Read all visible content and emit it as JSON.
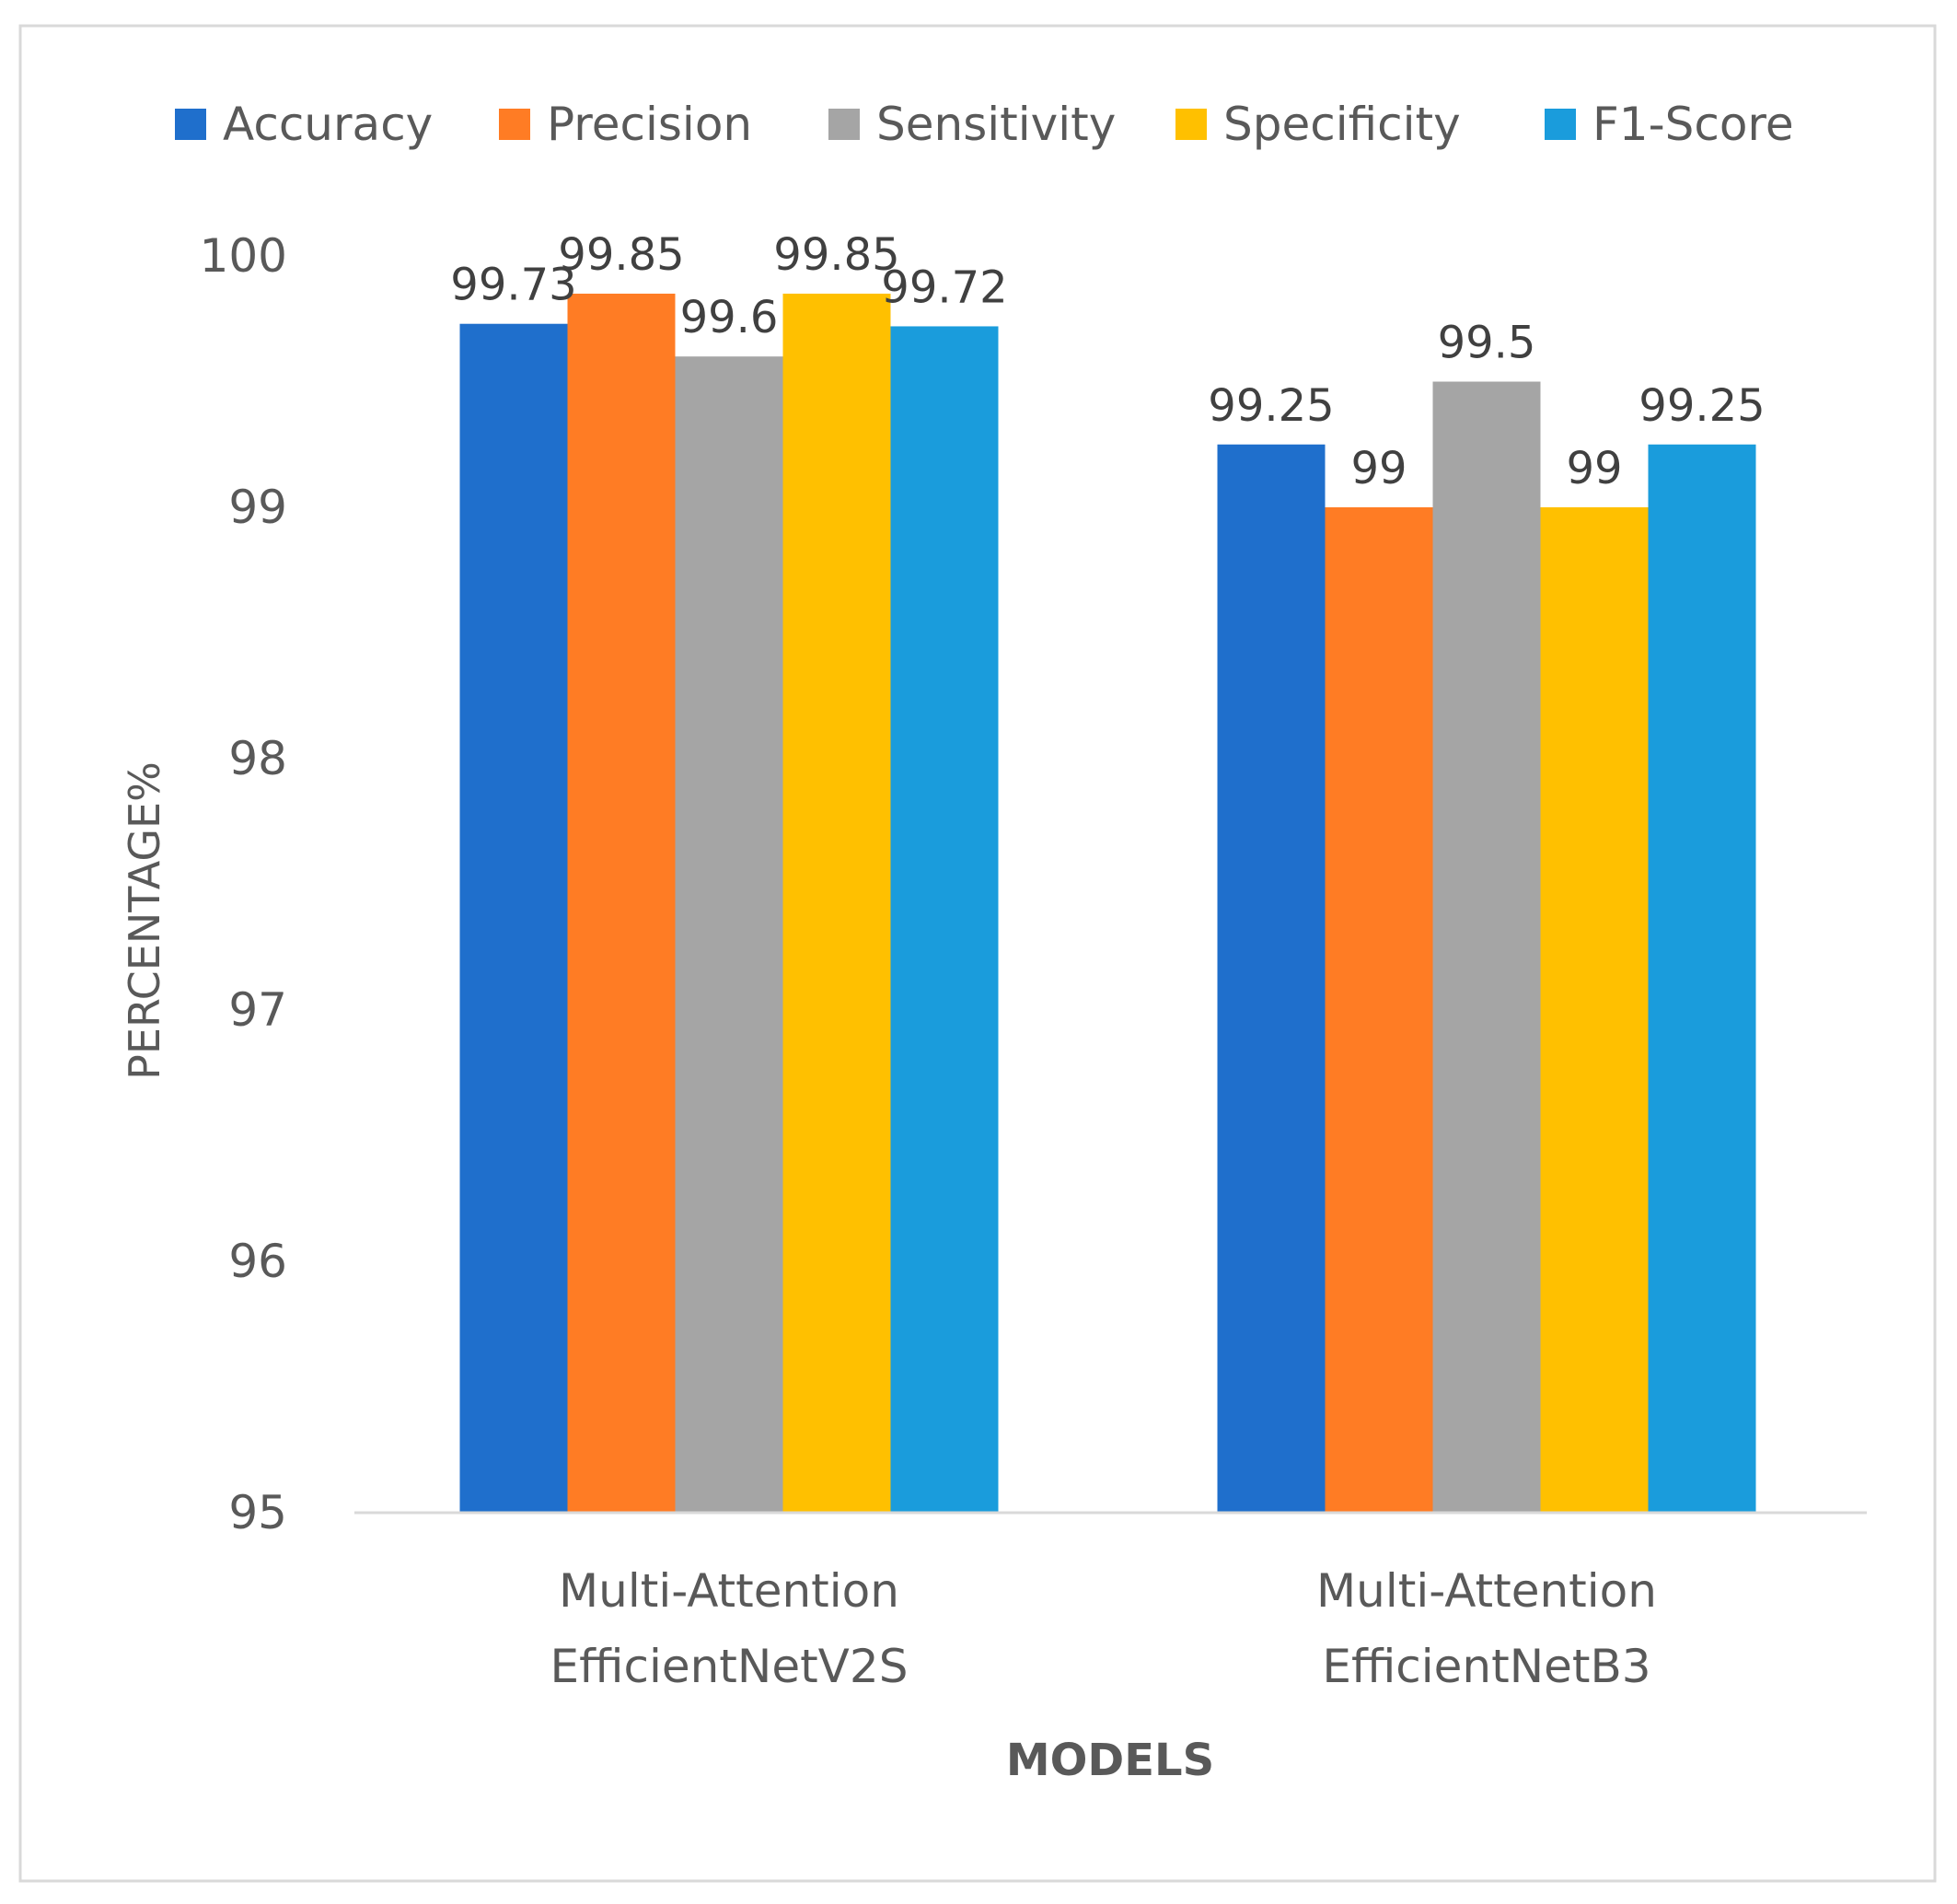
{
  "chart_data": {
    "type": "bar",
    "title": "",
    "xlabel": "MODELS",
    "ylabel": "PERCENTAGE%",
    "ylim": [
      95,
      100
    ],
    "yticks": [
      "95",
      "96",
      "97",
      "98",
      "99",
      "100"
    ],
    "grid": false,
    "legend_position": "top",
    "categories": [
      [
        "Multi-Attention",
        "EfficientNetV2S"
      ],
      [
        "Multi-Attention",
        "EfficientNetB3"
      ]
    ],
    "series": [
      {
        "name": "Accuracy",
        "color": "#1f6fcc",
        "values": [
          99.73,
          99.25
        ],
        "labels": [
          "99.73",
          "99.25"
        ]
      },
      {
        "name": "Precision",
        "color": "#ff7c24",
        "values": [
          99.85,
          99
        ],
        "labels": [
          "99.85",
          "99"
        ]
      },
      {
        "name": "Sensitivity",
        "color": "#a5a5a5",
        "values": [
          99.6,
          99.5
        ],
        "labels": [
          "99.6",
          "99.5"
        ]
      },
      {
        "name": "Specificity",
        "color": "#ffc000",
        "values": [
          99.85,
          99
        ],
        "labels": [
          "99.85",
          "99"
        ]
      },
      {
        "name": "F1-Score",
        "color": "#1a9cdc",
        "values": [
          99.72,
          99.25
        ],
        "labels": [
          "99.72",
          "99.25"
        ]
      }
    ]
  }
}
